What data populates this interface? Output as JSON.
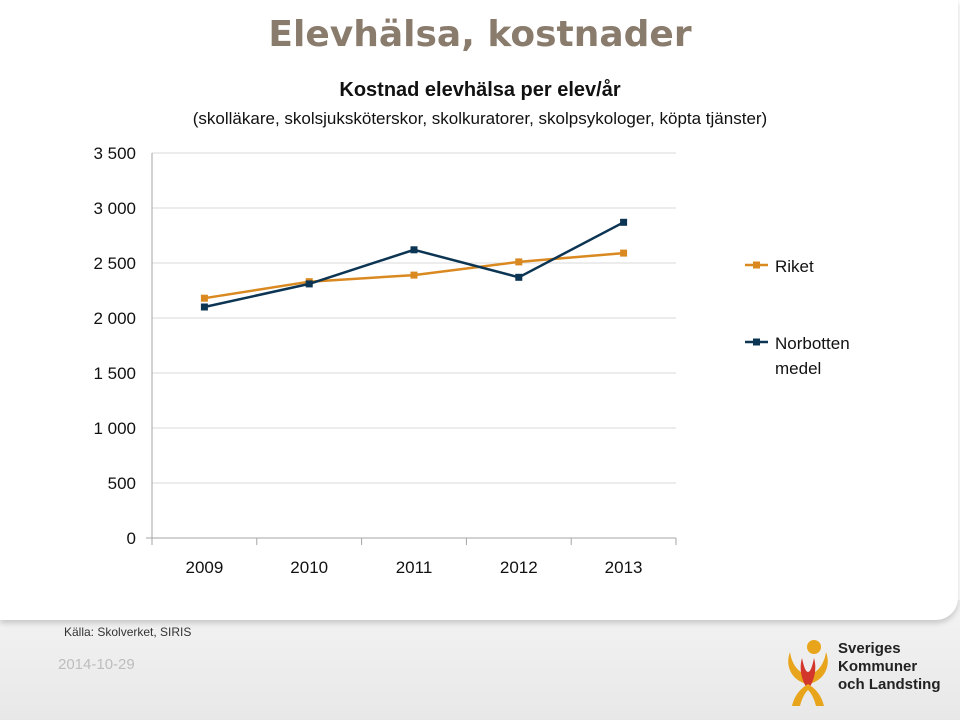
{
  "slide": {
    "title": "Elevhälsa, kostnader",
    "source": "Källa: Skolverket, SIRIS",
    "date": "2014-10-29",
    "logo_lines": [
      "Sveriges",
      "Kommuner",
      "och Landsting"
    ]
  },
  "colors": {
    "title": "#8a7c6d",
    "riket": "#d9891f",
    "norbotten": "#0c3453",
    "grid": "#d9d9d9"
  },
  "chart_data": {
    "type": "line",
    "title": "Kostnad elevhälsa per elev/år",
    "subtitle": "(skolläkare, skolsjuksköterskor, skolkuratorer, skolpsykologer, köpta tjänster)",
    "categories": [
      "2009",
      "2010",
      "2011",
      "2012",
      "2013"
    ],
    "yticks": [
      "0",
      "500",
      "1 000",
      "1 500",
      "2 000",
      "2 500",
      "3 000",
      "3 500"
    ],
    "ylim": [
      0,
      3500
    ],
    "ystep": 500,
    "grid": true,
    "legend_position": "right",
    "series": [
      {
        "name": "Riket",
        "legend_lines": [
          "Riket"
        ],
        "color": "#d9891f",
        "values": [
          2180,
          2330,
          2390,
          2510,
          2590
        ]
      },
      {
        "name": "Norbotten medel",
        "legend_lines": [
          "Norbotten",
          "medel"
        ],
        "color": "#0c3453",
        "values": [
          2100,
          2310,
          2620,
          2370,
          2870
        ]
      }
    ]
  }
}
